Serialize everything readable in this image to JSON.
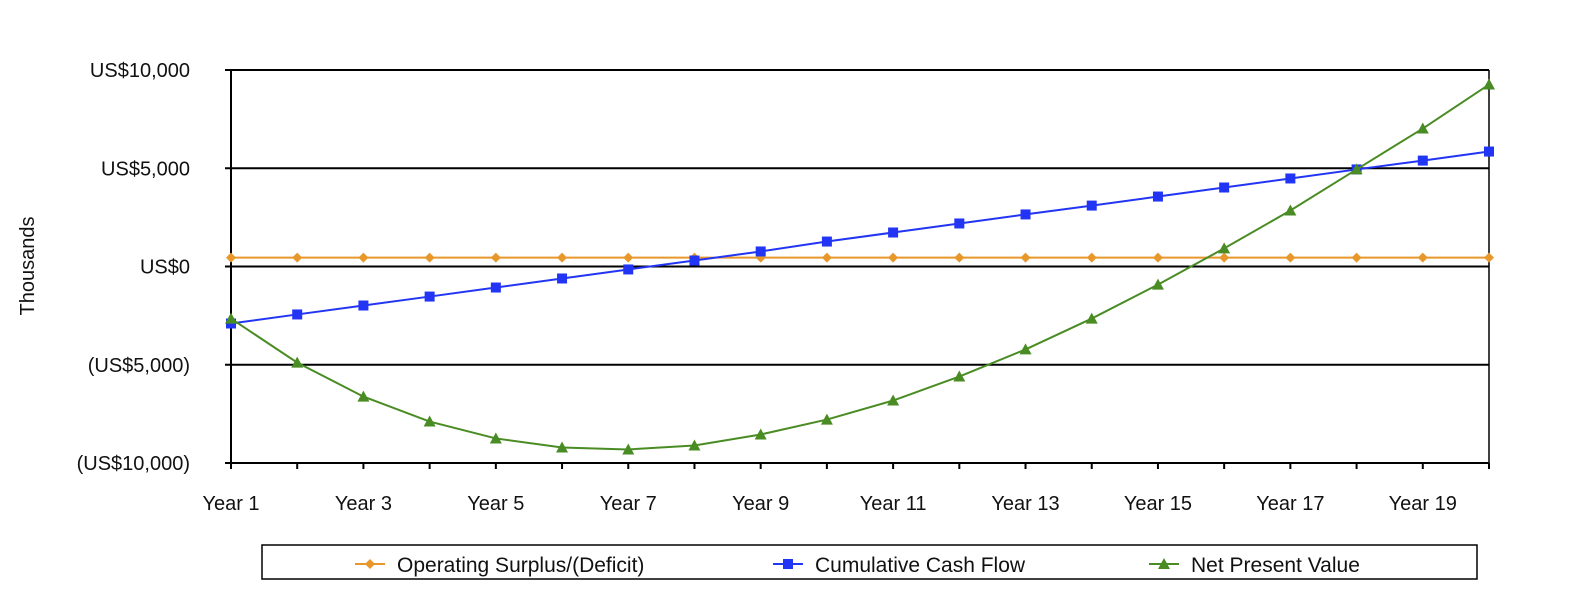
{
  "chart_data": {
    "type": "line",
    "title": "",
    "xlabel": "",
    "ylabel": "Thousands",
    "ylim": [
      -10000,
      10000
    ],
    "yticks": [
      10000,
      5000,
      0,
      -5000,
      -10000
    ],
    "ytick_labels": [
      "US$10,000",
      "US$5,000",
      "US$0",
      "(US$5,000)",
      "(US$10,000)"
    ],
    "categories": [
      "Year 1",
      "Year 2",
      "Year 3",
      "Year 4",
      "Year 5",
      "Year 6",
      "Year 7",
      "Year 8",
      "Year 9",
      "Year 10",
      "Year 11",
      "Year 12",
      "Year 13",
      "Year 14",
      "Year 15",
      "Year 16",
      "Year 17",
      "Year 18",
      "Year 19",
      "Year 20"
    ],
    "xtick_labels": [
      "Year 1",
      "Year 3",
      "Year 5",
      "Year 7",
      "Year 9",
      "Year 11",
      "Year 13",
      "Year 15",
      "Year 17",
      "Year 19"
    ],
    "grid": true,
    "legend_position": "bottom",
    "series": [
      {
        "name": "Operating Surplus/(Deficit)",
        "color": "#E8972A",
        "marker": "diamond",
        "values": [
          450,
          450,
          450,
          450,
          450,
          450,
          450,
          450,
          450,
          450,
          450,
          450,
          450,
          450,
          450,
          450,
          450,
          450,
          450,
          450
        ]
      },
      {
        "name": "Cumulative Cash Flow",
        "color": "#2235F5",
        "marker": "square",
        "values": [
          -2900,
          -2440,
          -1985,
          -1530,
          -1070,
          -610,
          -150,
          305,
          765,
          1270,
          1730,
          2190,
          2650,
          3100,
          3560,
          4020,
          4480,
          4940,
          5390,
          5850
        ]
      },
      {
        "name": "Net Present Value",
        "color": "#4A8C24",
        "marker": "triangle",
        "values": [
          -2650,
          -4890,
          -6620,
          -7890,
          -8750,
          -9210,
          -9310,
          -9110,
          -8550,
          -7790,
          -6820,
          -5600,
          -4220,
          -2650,
          -920,
          920,
          2850,
          4940,
          7020,
          9260
        ]
      }
    ]
  }
}
